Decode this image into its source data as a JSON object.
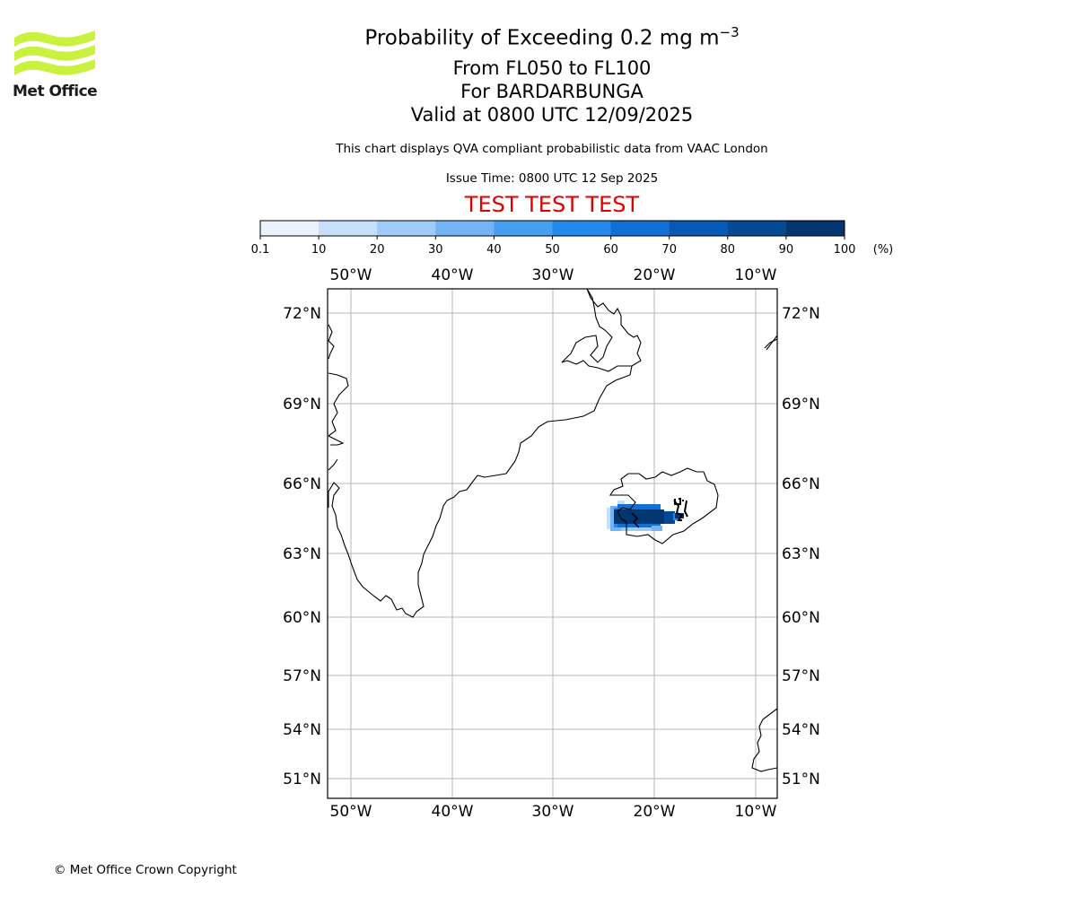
{
  "logo": {
    "text": "Met Office",
    "color": "#c8f23c"
  },
  "header": {
    "title_main": "Probability of Exceeding 0.2 mg m",
    "title_exp": "−3",
    "line2": "From FL050 to FL100",
    "line3": "For BARDARBUNGA",
    "line4": "Valid at 0800 UTC 12/09/2025",
    "description": "This chart displays QVA compliant probabilistic data from VAAC London",
    "issue_time": "Issue Time: 0800 UTC 12 Sep 2025",
    "test_banner": "TEST TEST TEST",
    "test_color": "#e00000"
  },
  "colorbar": {
    "ticks": [
      "0.1",
      "10",
      "20",
      "30",
      "40",
      "50",
      "60",
      "70",
      "80",
      "90",
      "100"
    ],
    "unit": "(%)",
    "colors": [
      "#eaf3fd",
      "#c6e0fb",
      "#9ecbf8",
      "#72b4f5",
      "#46a0f2",
      "#2389ed",
      "#1070d6",
      "#0659b5",
      "#044a93",
      "#033570"
    ]
  },
  "map": {
    "lon_labels": [
      "50°W",
      "40°W",
      "30°W",
      "20°W",
      "10°W"
    ],
    "lat_labels": [
      "72°N",
      "69°N",
      "66°N",
      "63°N",
      "60°N",
      "57°N",
      "54°N",
      "51°N"
    ],
    "volcano": "BARDARBUNGA"
  },
  "footer": {
    "copyright": "© Met Office Crown Copyright"
  }
}
